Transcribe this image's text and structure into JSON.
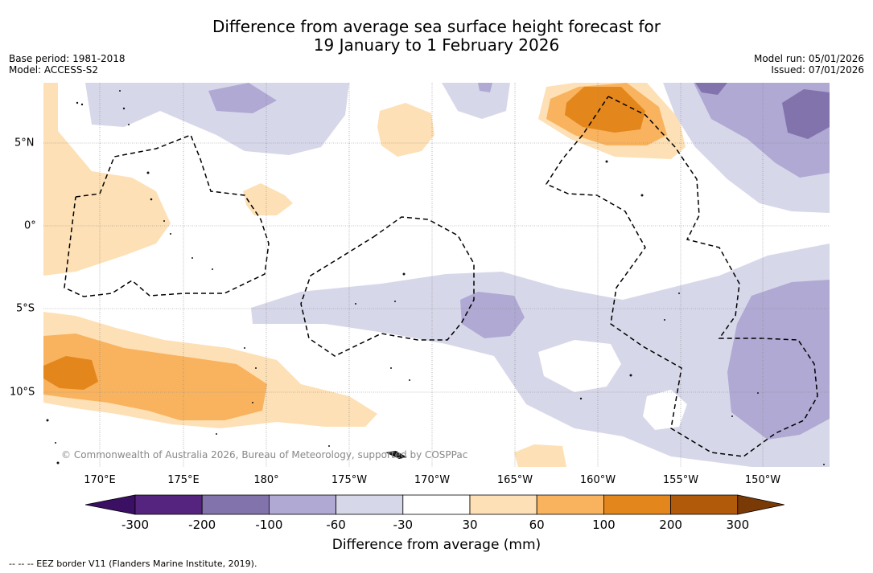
{
  "title_line1": "Difference from average sea surface height forecast for",
  "title_line2": "19 January to 1 February 2026",
  "base_period": "Base period: 1981-2018",
  "model": "Model: ACCESS-S2",
  "model_run": "Model run: 05/01/2026",
  "issued": "Issued: 07/01/2026",
  "copyright": "© Commonwealth of Australia 2026, Bureau of Meteorology, supported by COSPPac",
  "longitude_labels": [
    "170°E",
    "175°E",
    "180°",
    "175°W",
    "170°W",
    "165°W",
    "160°W",
    "155°W",
    "150°W"
  ],
  "latitude_labels": [
    "5°N",
    "0°",
    "5°S",
    "10°S"
  ],
  "colorbar": {
    "label": "Difference from average (mm)",
    "ticks": [
      "-300",
      "-200",
      "-100",
      "-60",
      "-30",
      "30",
      "60",
      "100",
      "200",
      "300"
    ],
    "colors": [
      "#3b0f63",
      "#54247f",
      "#8273ad",
      "#afa9d3",
      "#d7d7ea",
      "#ffffff",
      "#fde0b5",
      "#f9b35e",
      "#e3871c",
      "#b15a0a",
      "#7a3a06"
    ]
  },
  "eez_legend": "--  --  -- EEZ border V11 (Flanders Marine Institute, 2019)."
}
